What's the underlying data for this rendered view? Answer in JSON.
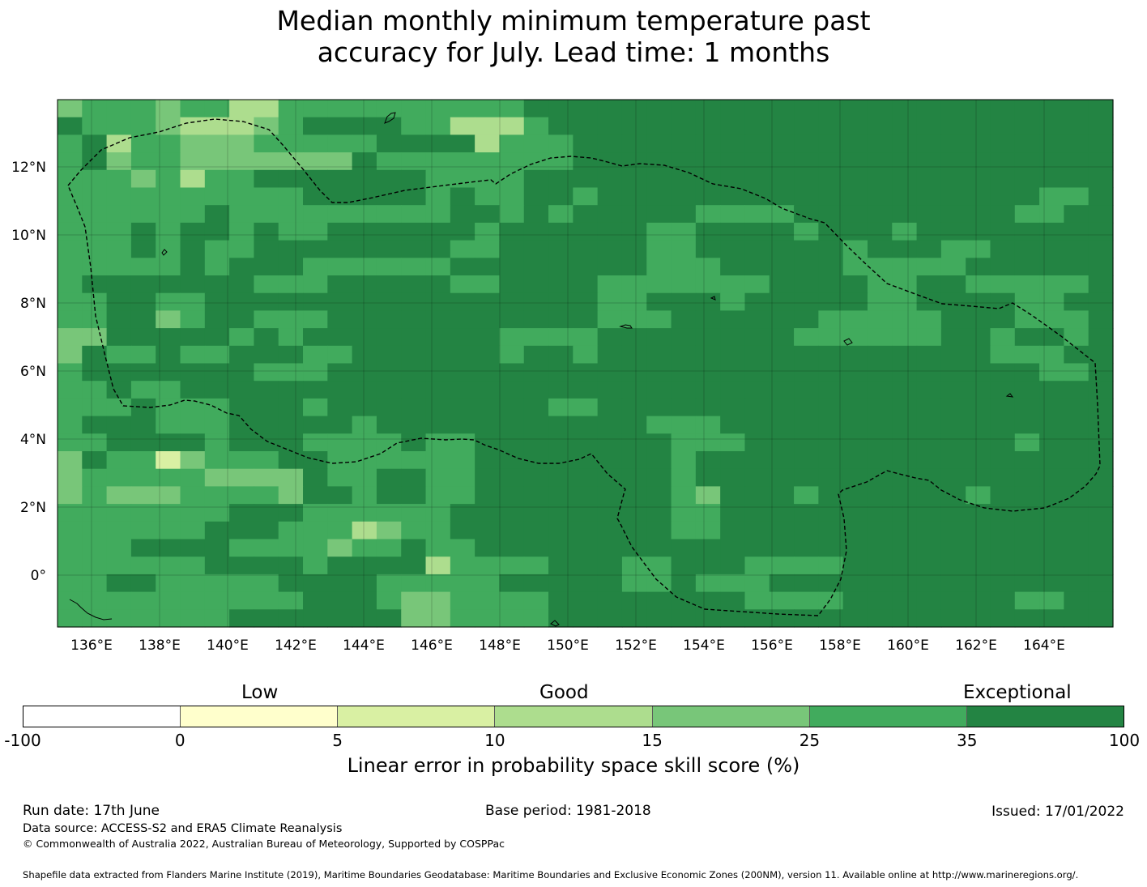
{
  "title": {
    "line1": "Median monthly minimum temperature past",
    "line2": "accuracy for July. Lead time: 1 months"
  },
  "map": {
    "lon_ticks": [
      "136°E",
      "138°E",
      "140°E",
      "142°E",
      "144°E",
      "146°E",
      "148°E",
      "150°E",
      "152°E",
      "154°E",
      "156°E",
      "158°E",
      "160°E",
      "162°E",
      "164°E"
    ],
    "lat_ticks": [
      "12°N",
      "10°N",
      "8°N",
      "6°N",
      "4°N",
      "2°N",
      "0°"
    ],
    "colors": {
      "c1": "#ffffcc",
      "c2": "#d9f0a3",
      "c3": "#addd8e",
      "c4": "#78c679",
      "c5": "#41ab5d",
      "c6": "#238443"
    }
  },
  "colorbar": {
    "categories": [
      "Low",
      "Good",
      "Exceptional"
    ],
    "ticks": [
      "-100",
      "0",
      "5",
      "10",
      "15",
      "25",
      "35",
      "100"
    ],
    "colors": [
      "#ffffff",
      "#ffffcc",
      "#d9f0a3",
      "#addd8e",
      "#78c679",
      "#41ab5d",
      "#238443"
    ],
    "label": "Linear error in probability space skill score (%)"
  },
  "footer": {
    "run_date": "Run date: 17th June",
    "base_period": "Base period: 1981-2018",
    "issued": "Issued: 17/01/2022",
    "data_source": "Data source: ACCESS-S2 and ERA5 Climate Reanalysis",
    "copyright": "© Commonwealth of Australia 2022, Australian Bureau of Meteorology, Supported by COSPPac",
    "shapefile": "Shapefile data extracted from Flanders Marine Institute (2019), Maritime Boundaries Geodatabase: Maritime Boundaries and Exclusive Economic Zones (200NM), version 11. Available online at http://www.marineregions.org/."
  }
}
